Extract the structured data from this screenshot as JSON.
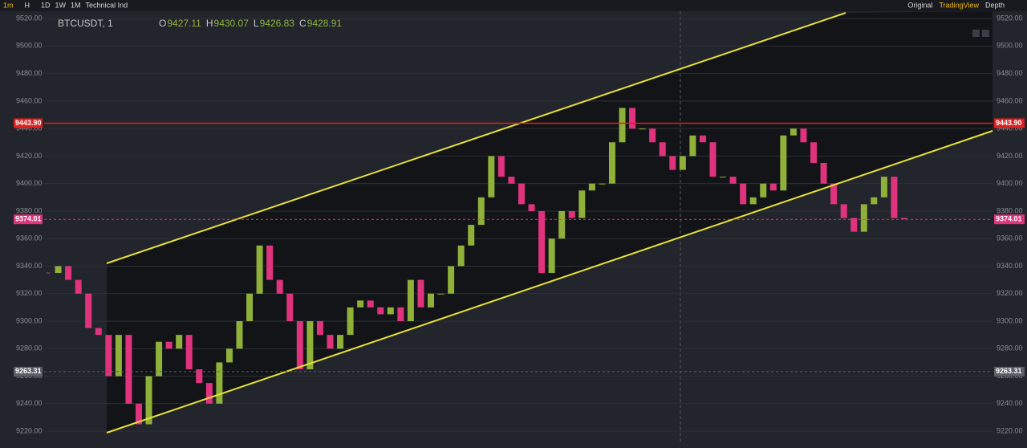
{
  "toolbar": {
    "intervals": [
      "1m",
      "H",
      "1D",
      "1W",
      "1M"
    ],
    "indicators": "Technical Ind",
    "views": [
      "Original",
      "TradingView",
      "Depth"
    ]
  },
  "legend": {
    "symbol": "BTCUSDT, 1",
    "ohlc": [
      {
        "key": "O",
        "value": 9427.11
      },
      {
        "key": "H",
        "value": 9430.07
      },
      {
        "key": "L",
        "value": 9426.83
      },
      {
        "key": "C",
        "value": 9428.91
      }
    ]
  },
  "chart_data": {
    "type": "candlestick",
    "closes": [
      9335,
      9340,
      9330,
      9320,
      9295,
      9290,
      9260,
      9290,
      9240,
      9225,
      9260,
      9285,
      9280,
      9290,
      9265,
      9255,
      9240,
      9270,
      9280,
      9300,
      9320,
      9355,
      9330,
      9320,
      9300,
      9265,
      9300,
      9290,
      9280,
      9290,
      9310,
      9315,
      9310,
      9305,
      9310,
      9300,
      9330,
      9310,
      9320,
      9320,
      9340,
      9355,
      9370,
      9390,
      9420,
      9405,
      9400,
      9385,
      9380,
      9335,
      9360,
      9380,
      9375,
      9395,
      9400,
      9400,
      9430,
      9455,
      9440,
      9440,
      9430,
      9420,
      9410,
      9420,
      9435,
      9430,
      9405,
      9405,
      9400,
      9385,
      9390,
      9400,
      9395,
      9435,
      9440,
      9430,
      9415,
      9400,
      9385,
      9375,
      9365,
      9385,
      9390,
      9405,
      9375,
      9374
    ],
    "up_color": "#8fb13a",
    "down_color": "#e0337e",
    "ylim": [
      9210.7,
      9525.3
    ],
    "yticks": [
      {
        "value": 9220,
        "label": "9220.00"
      },
      {
        "value": 9240,
        "label": "9240.00"
      },
      {
        "value": 9260,
        "label": "9260.00"
      },
      {
        "value": 9280,
        "label": "9280.00"
      },
      {
        "value": 9300,
        "label": "9300.00"
      },
      {
        "value": 9320,
        "label": "9320.00"
      },
      {
        "value": 9340,
        "label": "9340.00"
      },
      {
        "value": 9360,
        "label": "9360.00"
      },
      {
        "value": 9380,
        "label": "9380.00"
      },
      {
        "value": 9400,
        "label": "9400.00"
      },
      {
        "value": 9420,
        "label": "9420.00"
      },
      {
        "value": 9440,
        "label": "9440.00"
      },
      {
        "value": 9460,
        "label": "9460.00"
      },
      {
        "value": 9480,
        "label": "9480.00"
      },
      {
        "value": 9500,
        "label": "9500.00"
      },
      {
        "value": 9520,
        "label": "9520.00"
      }
    ],
    "levels": [
      {
        "value": 9443.9,
        "label": "9443.90",
        "color": "#e0201e"
      },
      {
        "value": 9374.01,
        "label": "9374.01",
        "color": "#e0337e"
      },
      {
        "value": 9263.31,
        "label": "9263.31",
        "color": "#5a5e66"
      }
    ]
  }
}
